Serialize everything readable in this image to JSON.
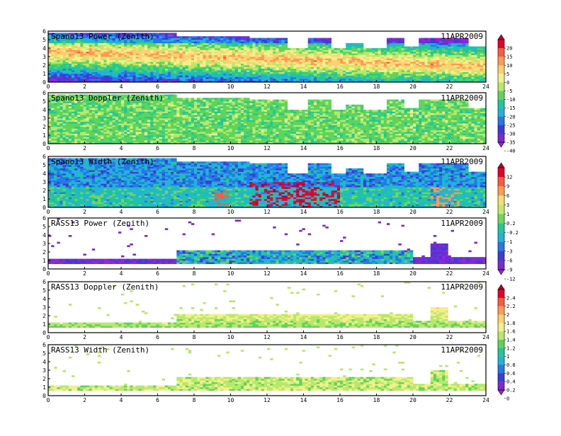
{
  "date_label": "11APR2009",
  "chart_data": [
    {
      "type": "heatmap",
      "title": "Spano13 Power (Zenith)",
      "xlim": [
        0,
        24
      ],
      "ylim": [
        0,
        6
      ],
      "x_ticks": [
        "0",
        "2",
        "4",
        "6",
        "8",
        "10",
        "12",
        "14",
        "16",
        "18",
        "20",
        "22",
        "24"
      ],
      "y_ticks": [
        "0",
        "1",
        "2",
        "3",
        "4",
        "5",
        "6"
      ],
      "field": "snr",
      "colorbar": "power"
    },
    {
      "type": "heatmap",
      "title": "Spano13 Doppler (Zenith)",
      "xlim": [
        0,
        24
      ],
      "ylim": [
        0,
        6
      ],
      "x_ticks": [
        "0",
        "2",
        "4",
        "6",
        "8",
        "10",
        "12",
        "14",
        "16",
        "18",
        "20",
        "22",
        "24"
      ],
      "y_ticks": [
        "0",
        "1",
        "2",
        "3",
        "4",
        "5",
        "6"
      ],
      "field": "doppler",
      "colorbar": "power"
    },
    {
      "type": "heatmap",
      "title": "Spano13 Width (Zenith)",
      "xlim": [
        0,
        24
      ],
      "ylim": [
        0,
        6
      ],
      "x_ticks": [
        "0",
        "2",
        "4",
        "6",
        "8",
        "10",
        "12",
        "14",
        "16",
        "18",
        "20",
        "22",
        "24"
      ],
      "y_ticks": [
        "0",
        "1",
        "2",
        "3",
        "4",
        "5",
        "6"
      ],
      "field": "width",
      "colorbar": "width"
    },
    {
      "type": "heatmap",
      "title": "RASS13 Power (Zenith)",
      "xlim": [
        0,
        24
      ],
      "ylim": [
        0,
        6
      ],
      "x_ticks": [
        "0",
        "2",
        "4",
        "6",
        "8",
        "10",
        "12",
        "14",
        "16",
        "18",
        "20",
        "22",
        "24"
      ],
      "y_ticks": [
        "0",
        "1",
        "2",
        "3",
        "4",
        "5",
        "6"
      ],
      "field": "rass_power",
      "colorbar": "width"
    },
    {
      "type": "heatmap",
      "title": "RASS13 Doppler (Zenith)",
      "xlim": [
        0,
        24
      ],
      "ylim": [
        0,
        6
      ],
      "x_ticks": [
        "0",
        "2",
        "4",
        "6",
        "8",
        "10",
        "12",
        "14",
        "16",
        "18",
        "20",
        "22",
        "24"
      ],
      "y_ticks": [
        "0",
        "1",
        "2",
        "3",
        "4",
        "5",
        "6"
      ],
      "field": "rass_doppler",
      "colorbar": "rass"
    },
    {
      "type": "heatmap",
      "title": "RASS13 Width (Zenith)",
      "xlim": [
        0,
        24
      ],
      "ylim": [
        0,
        6
      ],
      "x_ticks": [
        "0",
        "2",
        "4",
        "6",
        "8",
        "10",
        "12",
        "14",
        "16",
        "18",
        "20",
        "22",
        "24"
      ],
      "y_ticks": [
        "0",
        "1",
        "2",
        "3",
        "4",
        "5",
        "6"
      ],
      "field": "rass_width",
      "colorbar": "rass"
    }
  ],
  "colorbars": {
    "power": {
      "labels": [
        "20",
        "15",
        "10",
        "5",
        "0",
        "-5",
        "-10",
        "-15",
        "-20",
        "-25",
        "-30",
        "-35",
        "-40"
      ],
      "colors": [
        "#b0003c",
        "#e8002a",
        "#ff5a3c",
        "#ff9b50",
        "#ffd070",
        "#f2f08a",
        "#b8e86a",
        "#5ed45a",
        "#22c894",
        "#20b4d8",
        "#2478e8",
        "#3c3cd8",
        "#7a2ad0",
        "#a020e0"
      ]
    },
    "width": {
      "labels": [
        "12",
        "9",
        "6",
        "3",
        "1",
        "0.2",
        "-0.2",
        "-1",
        "-3",
        "-6",
        "-9",
        "-12"
      ],
      "colors": [
        "#b0003c",
        "#e8002a",
        "#ff5a3c",
        "#ff9b50",
        "#f2e070",
        "#c6e86a",
        "#6ed85a",
        "#22c894",
        "#20b4d8",
        "#2478e8",
        "#3c3cd8",
        "#7a2ad0",
        "#a020e0"
      ]
    },
    "rass": {
      "labels": [
        "2.4",
        "2.2",
        "2",
        "1.8",
        "1.6",
        "1.4",
        "1.2",
        "1",
        "0.8",
        "0.6",
        "0.4",
        "0.2",
        "0"
      ],
      "colors": [
        "#b0003c",
        "#e8002a",
        "#ff5a3c",
        "#ff9b50",
        "#ffd070",
        "#f2f08a",
        "#b8e86a",
        "#5ed45a",
        "#22c894",
        "#20b4d8",
        "#2478e8",
        "#3c3cd8",
        "#7a2ad0",
        "#a020e0"
      ]
    }
  }
}
